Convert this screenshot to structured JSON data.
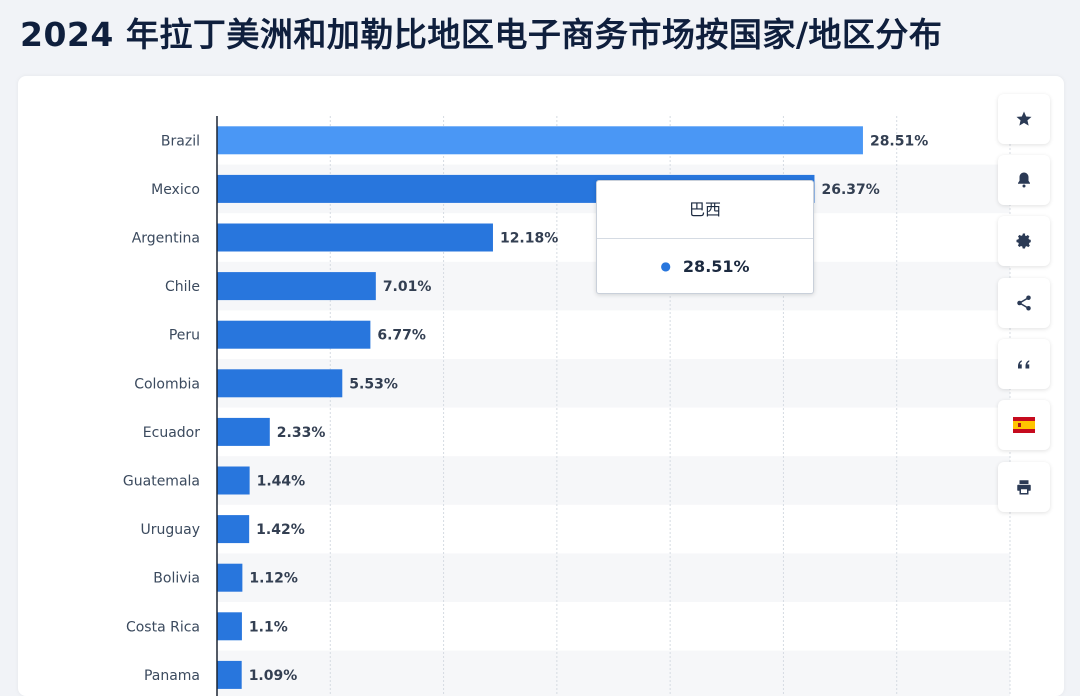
{
  "page": {
    "title": "2024 年拉丁美洲和加勒比地区电子商务市场按国家/地区分布"
  },
  "tooltip": {
    "title": "巴西",
    "value": "28.51%"
  },
  "colors": {
    "bar": "#2876dd",
    "bar_hover": "#4a97f5",
    "grid": "#d6dbe2",
    "band": "#f6f7f9",
    "axis": "#1c2533"
  },
  "side_buttons": [
    {
      "name": "favorite-button",
      "icon": "star-icon"
    },
    {
      "name": "notification-button",
      "icon": "bell-icon"
    },
    {
      "name": "settings-button",
      "icon": "gear-icon"
    },
    {
      "name": "share-button",
      "icon": "share-icon"
    },
    {
      "name": "cite-button",
      "icon": "quote-icon"
    },
    {
      "name": "language-button",
      "icon": "spain-flag-icon"
    },
    {
      "name": "print-button",
      "icon": "printer-icon"
    }
  ],
  "chart_data": {
    "type": "bar",
    "orientation": "horizontal",
    "categories": [
      "Brazil",
      "Mexico",
      "Argentina",
      "Chile",
      "Peru",
      "Colombia",
      "Ecuador",
      "Guatemala",
      "Uruguay",
      "Bolivia",
      "Costa Rica",
      "Panama"
    ],
    "values": [
      28.51,
      26.37,
      12.18,
      7.01,
      6.77,
      5.53,
      2.33,
      1.44,
      1.42,
      1.12,
      1.1,
      1.09
    ],
    "value_labels": [
      "28.51%",
      "26.37%",
      "12.18%",
      "7.01%",
      "6.77%",
      "5.53%",
      "2.33%",
      "1.44%",
      "1.42%",
      "1.12%",
      "1.1%",
      "1.09%"
    ],
    "highlighted_category": "Brazil",
    "xlim": [
      0,
      35
    ],
    "grid": true,
    "legend": "none"
  }
}
